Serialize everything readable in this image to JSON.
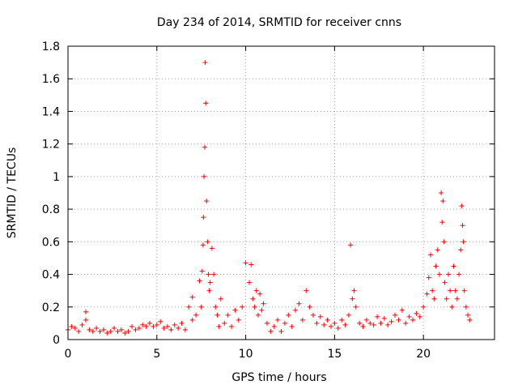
{
  "chart_data": {
    "type": "scatter",
    "title": "Day 234 of 2014, SRMTID for receiver cnns",
    "xlabel": "GPS time / hours",
    "ylabel": "SRMTID / TECUs",
    "xlim": [
      0,
      24
    ],
    "ylim": [
      0,
      1.8
    ],
    "xticks": [
      0,
      5,
      10,
      15,
      20
    ],
    "yticks": [
      0,
      0.2,
      0.4,
      0.6,
      0.8,
      1,
      1.2,
      1.4,
      1.6,
      1.8
    ],
    "ytick_labels": [
      "0",
      "0.2",
      "0.4",
      "0.6",
      "0.8",
      "1",
      "1.2",
      "1.4",
      "1.6",
      "1.8"
    ],
    "grid": true,
    "marker": "+",
    "color": "#ff0000",
    "series": [
      {
        "name": "SRMTID",
        "x": [
          0.0,
          0.2,
          0.4,
          0.6,
          0.8,
          1.0,
          1.0,
          1.2,
          1.4,
          1.6,
          1.8,
          2.0,
          2.2,
          2.4,
          2.6,
          2.8,
          3.0,
          3.2,
          3.4,
          3.6,
          3.8,
          4.0,
          4.2,
          4.4,
          4.6,
          4.8,
          5.0,
          5.2,
          5.4,
          5.6,
          5.8,
          6.0,
          6.2,
          6.4,
          6.6,
          6.8,
          7.0,
          7.0,
          7.2,
          7.4,
          7.5,
          7.55,
          7.6,
          7.62,
          7.65,
          7.7,
          7.72,
          7.75,
          7.8,
          7.85,
          7.9,
          7.95,
          8.0,
          8.1,
          8.2,
          8.3,
          8.4,
          8.5,
          8.6,
          8.8,
          9.0,
          9.2,
          9.4,
          9.6,
          9.8,
          10.0,
          10.2,
          10.3,
          10.4,
          10.5,
          10.6,
          10.7,
          10.8,
          10.9,
          11.0,
          11.2,
          11.4,
          11.6,
          11.8,
          12.0,
          12.2,
          12.4,
          12.6,
          12.8,
          13.0,
          13.2,
          13.4,
          13.6,
          13.8,
          14.0,
          14.2,
          14.4,
          14.6,
          14.8,
          15.0,
          15.2,
          15.4,
          15.6,
          15.8,
          15.9,
          16.0,
          16.1,
          16.2,
          16.4,
          16.6,
          16.8,
          17.0,
          17.2,
          17.4,
          17.6,
          17.8,
          18.0,
          18.2,
          18.4,
          18.6,
          18.8,
          19.0,
          19.2,
          19.4,
          19.6,
          19.8,
          20.0,
          20.2,
          20.3,
          20.4,
          20.5,
          20.6,
          20.7,
          20.8,
          20.9,
          21.0,
          21.05,
          21.1,
          21.15,
          21.2,
          21.3,
          21.4,
          21.5,
          21.6,
          21.7,
          21.8,
          21.9,
          22.0,
          22.1,
          22.15,
          22.2,
          22.25,
          22.3,
          22.4,
          22.5,
          22.6
        ],
        "y": [
          0.06,
          0.08,
          0.07,
          0.05,
          0.09,
          0.17,
          0.12,
          0.06,
          0.05,
          0.07,
          0.05,
          0.06,
          0.04,
          0.05,
          0.07,
          0.05,
          0.06,
          0.04,
          0.05,
          0.08,
          0.06,
          0.07,
          0.09,
          0.08,
          0.1,
          0.08,
          0.09,
          0.11,
          0.07,
          0.08,
          0.06,
          0.09,
          0.07,
          0.1,
          0.06,
          0.2,
          0.12,
          0.26,
          0.15,
          0.36,
          0.2,
          0.42,
          0.58,
          0.75,
          1.0,
          1.18,
          1.7,
          1.45,
          0.85,
          0.6,
          0.4,
          0.3,
          0.35,
          0.56,
          0.4,
          0.2,
          0.15,
          0.08,
          0.25,
          0.1,
          0.15,
          0.08,
          0.18,
          0.12,
          0.2,
          0.47,
          0.35,
          0.46,
          0.25,
          0.2,
          0.3,
          0.15,
          0.28,
          0.18,
          0.22,
          0.1,
          0.05,
          0.08,
          0.12,
          0.05,
          0.1,
          0.15,
          0.08,
          0.18,
          0.22,
          0.12,
          0.3,
          0.2,
          0.15,
          0.1,
          0.14,
          0.09,
          0.12,
          0.08,
          0.1,
          0.07,
          0.12,
          0.09,
          0.15,
          0.58,
          0.25,
          0.3,
          0.2,
          0.1,
          0.08,
          0.12,
          0.1,
          0.09,
          0.14,
          0.1,
          0.13,
          0.09,
          0.11,
          0.15,
          0.12,
          0.18,
          0.1,
          0.14,
          0.12,
          0.16,
          0.14,
          0.2,
          0.28,
          0.38,
          0.52,
          0.3,
          0.25,
          0.45,
          0.55,
          0.4,
          0.9,
          0.72,
          0.85,
          0.6,
          0.35,
          0.25,
          0.4,
          0.3,
          0.2,
          0.45,
          0.3,
          0.25,
          0.4,
          0.55,
          0.82,
          0.7,
          0.6,
          0.3,
          0.2,
          0.15,
          0.12
        ]
      }
    ]
  }
}
